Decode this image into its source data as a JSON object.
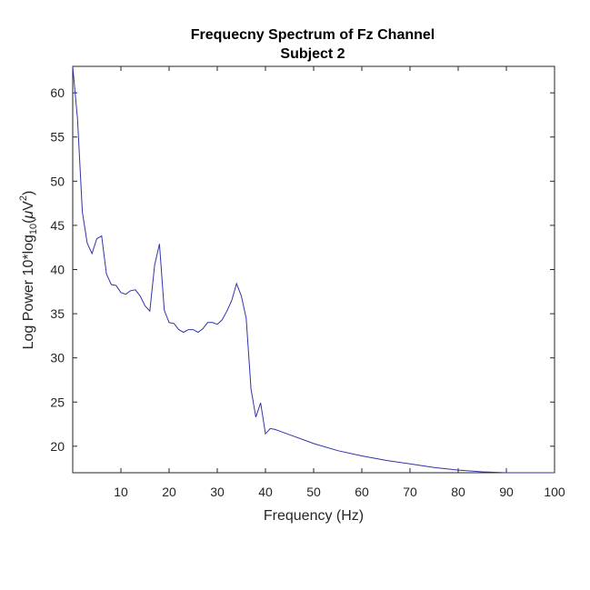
{
  "chart_data": {
    "type": "line",
    "title": "Frequecny Spectrum of Fz Channel",
    "subtitle": "Subject 2",
    "xlabel": "Frequency (Hz)",
    "ylabel": {
      "prefix": "Log Power 10*log",
      "subscript": "10",
      "middle": "(",
      "mu": "μ",
      "unit": "V",
      "superscript": "2",
      "suffix": ")"
    },
    "xlim": [
      0,
      100
    ],
    "ylim": [
      17,
      63
    ],
    "x_ticks": [
      10,
      20,
      30,
      40,
      50,
      60,
      70,
      80,
      90,
      100
    ],
    "y_ticks": [
      20,
      25,
      30,
      35,
      40,
      45,
      50,
      55,
      60
    ],
    "grid": false,
    "line_color": "#3333aa",
    "series": [
      {
        "x": [
          0,
          1,
          2,
          3,
          4,
          5,
          6,
          7,
          8,
          9,
          10,
          11,
          12,
          13,
          14,
          15,
          16,
          17,
          18,
          19,
          20,
          21,
          22,
          23,
          24,
          25,
          26,
          27,
          28,
          29,
          30,
          31,
          32,
          33,
          34,
          35,
          36,
          37,
          38,
          39,
          40,
          41,
          42,
          43,
          45,
          50,
          55,
          60,
          65,
          70,
          75,
          80,
          85,
          90,
          95,
          100
        ],
        "values": [
          63.0,
          57.0,
          46.5,
          43.0,
          41.8,
          43.5,
          43.8,
          39.5,
          38.3,
          38.2,
          37.4,
          37.2,
          37.6,
          37.7,
          37.0,
          35.9,
          35.3,
          40.5,
          42.9,
          35.4,
          34.0,
          33.9,
          33.2,
          32.9,
          33.2,
          33.2,
          32.9,
          33.3,
          34.0,
          34.0,
          33.8,
          34.3,
          35.3,
          36.5,
          38.4,
          37.0,
          34.5,
          26.5,
          23.3,
          24.9,
          21.4,
          22.0,
          21.9,
          21.7,
          21.3,
          20.3,
          19.5,
          18.9,
          18.4,
          18.0,
          17.6,
          17.3,
          17.1,
          17.0,
          16.9,
          16.9
        ]
      }
    ]
  }
}
